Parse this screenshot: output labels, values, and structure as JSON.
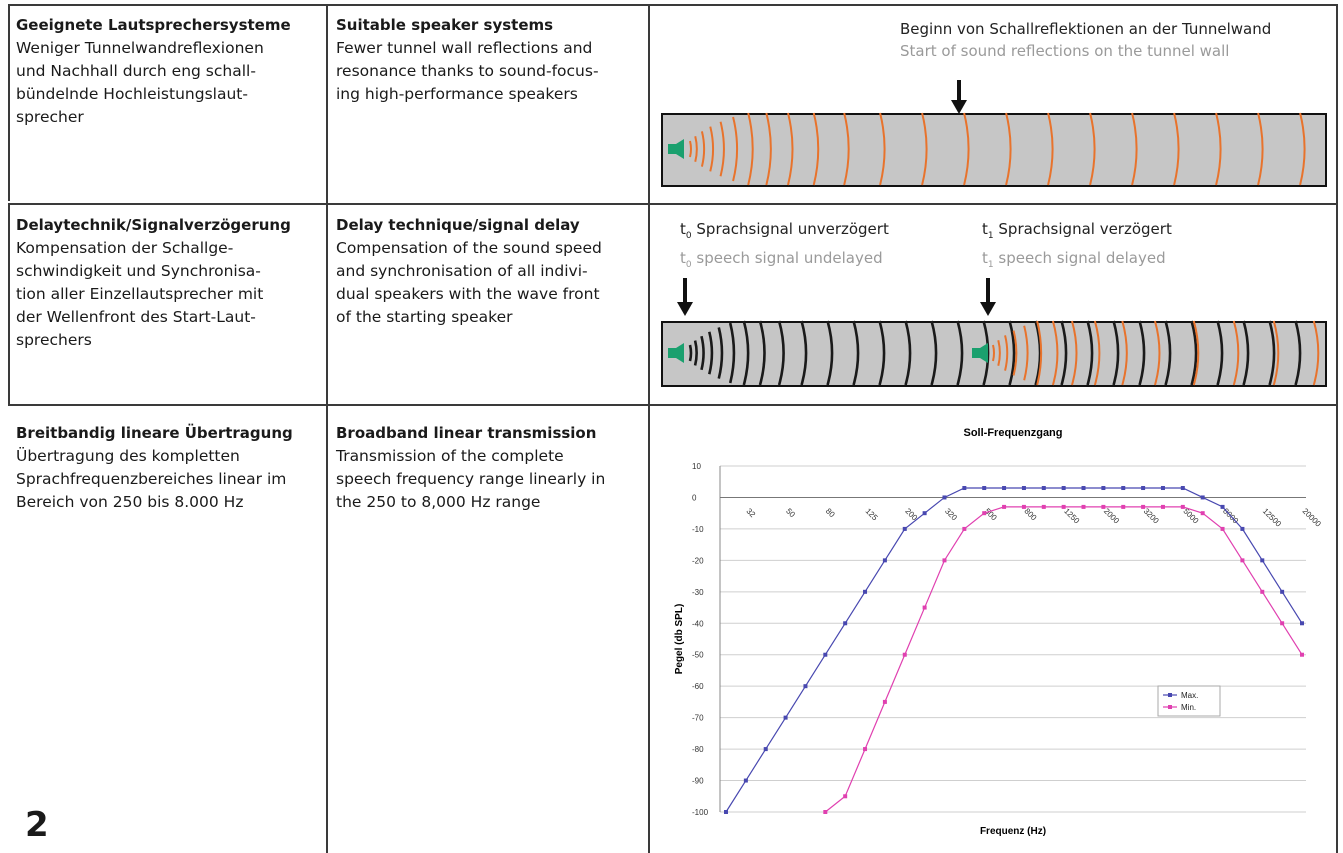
{
  "page_number": "2",
  "rows": [
    {
      "de_title": "Geeignete Lautsprechersysteme",
      "de_body": "Weniger Tunnelwandreflexionen\nund Nachhall durch eng schall-\nbündelnde Hochleistungslaut-\nsprecher",
      "en_title": "Suitable speaker systems",
      "en_body": "Fewer tunnel wall reflections and\nresonance thanks to sound-focus-\ning high-performance speakers",
      "caption_de": "Beginn von Schallreflektionen an der Tunnelwand",
      "caption_en": "Start of sound reflections on the tunnel wall"
    },
    {
      "de_title": "Delaytechnik/Signalverzögerung",
      "de_body": "Kompensation der Schallge-\nschwindigkeit und Synchronisa-\ntion aller Einzellautsprecher mit\nder Wellenfront des Start-Laut-\nsprechers",
      "en_title": "Delay technique/signal delay",
      "en_body": "Compensation of the sound speed\nand synchronisation of all indivi-\ndual speakers with the wave front\nof the starting speaker",
      "t0_de": "Sprachsignal unverzögert",
      "t0_en": "speech signal undelayed",
      "t1_de": "Sprachsignal verzögert",
      "t1_en": "speech signal delayed",
      "t_symbol": "t",
      "t0_sub": "0",
      "t1_sub": "1"
    },
    {
      "de_title": "Breitbandig lineare Übertragung",
      "de_body": "Übertragung des kompletten\nSprachfrequenzbereiches linear im\nBereich von 250 bis 8.000 Hz",
      "en_title": "Broadband linear transmission",
      "en_body": "Transmission of the complete\nspeech frequency range linearly in\nthe 250 to 8,000 Hz range"
    }
  ],
  "colors": {
    "wave_orange": "#e8732c",
    "wave_black": "#1a1a1a",
    "speaker_green": "#1aa06e",
    "tunnel_gray": "#c6c6c6",
    "max_series": "#4848b0",
    "min_series": "#e040b0"
  },
  "chart_data": {
    "type": "line",
    "title": "Soll-Frequenzgang",
    "xlabel": "Frequenz (Hz)",
    "ylabel": "Pegel (db SPL)",
    "ylim": [
      -100,
      10
    ],
    "yticks": [
      10,
      0,
      -10,
      -20,
      -30,
      -40,
      -50,
      -60,
      -70,
      -80,
      -90,
      -100
    ],
    "x_tick_labels": [
      "32",
      "50",
      "80",
      "125",
      "200",
      "320",
      "500",
      "800",
      "1250",
      "2000",
      "3200",
      "5000",
      "8000",
      "12500",
      "20000"
    ],
    "x": [
      "25",
      "32",
      "40",
      "50",
      "63",
      "80",
      "100",
      "125",
      "160",
      "200",
      "250",
      "320",
      "400",
      "500",
      "630",
      "800",
      "1000",
      "1250",
      "1600",
      "2000",
      "2500",
      "3200",
      "4000",
      "5000",
      "6300",
      "8000",
      "10000",
      "12500",
      "16000",
      "20000"
    ],
    "grid": "horizontal",
    "legend_position": "right",
    "series": [
      {
        "name": "Max.",
        "color": "#4848b0",
        "values": [
          -100,
          -90,
          -80,
          -70,
          -60,
          -50,
          -40,
          -30,
          -20,
          -10,
          -5,
          0,
          3,
          3,
          3,
          3,
          3,
          3,
          3,
          3,
          3,
          3,
          3,
          3,
          0,
          -3,
          -10,
          -20,
          -30,
          -40
        ]
      },
      {
        "name": "Min.",
        "color": "#e040b0",
        "values": [
          null,
          null,
          null,
          null,
          null,
          -100,
          -95,
          -80,
          -65,
          -50,
          -35,
          -20,
          -10,
          -5,
          -3,
          -3,
          -3,
          -3,
          -3,
          -3,
          -3,
          -3,
          -3,
          -3,
          -5,
          -10,
          -20,
          -30,
          -40,
          -50
        ]
      }
    ]
  }
}
